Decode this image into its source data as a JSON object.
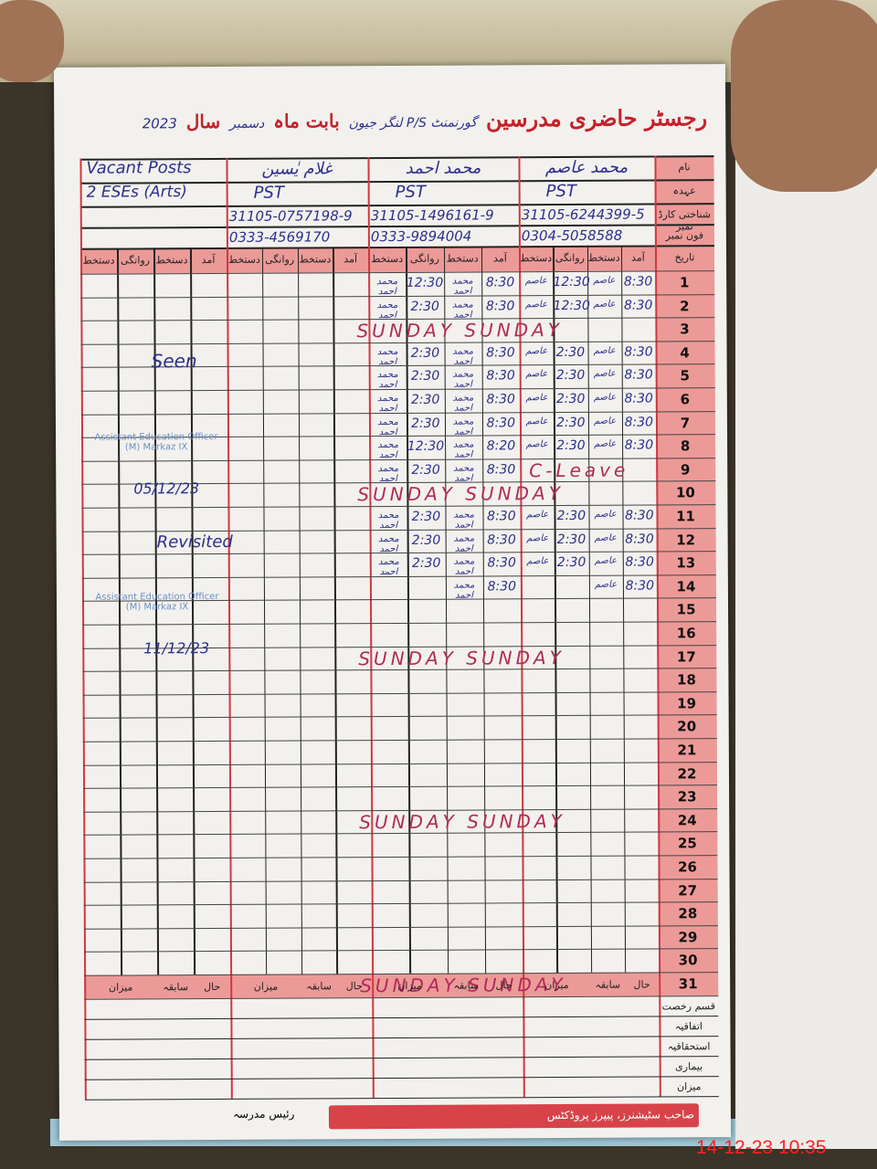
{
  "header": {
    "title": "رجسٹر حاضری مدرسین",
    "school": "گورنمنٹ P/S لنگر جیون",
    "month_label": "بابت ماہ",
    "month": "دسمبر",
    "year_label": "سال",
    "year": "2023"
  },
  "row_labels": {
    "name": "نام",
    "designation": "عہدہ",
    "cnic": "شناختی کارڈ نمبر",
    "phone": "فون نمبر",
    "date": "تاریخ"
  },
  "col_labels": [
    "آمد",
    "دستخط",
    "روانگی",
    "دستخط"
  ],
  "teachers": [
    {
      "name": "محمد عاصم",
      "designation": "PST",
      "cnic": "31105-6244399-5",
      "phone": "0304-5058588",
      "sig": "عاصم"
    },
    {
      "name": "محمد احمد",
      "designation": "PST",
      "cnic": "31105-1496161-9",
      "phone": "0333-9894004",
      "sig": "محمد احمد"
    },
    {
      "name": "غلام یٰسین",
      "designation": "PST",
      "cnic": "31105-0757198-9",
      "phone": "0333-4569170",
      "sig": ""
    }
  ],
  "vacant": {
    "line1": "Vacant Posts",
    "line2": "2 ESEs (Arts)"
  },
  "attendance": [
    {
      "day": "1",
      "t1": [
        "8:30",
        "12:30"
      ],
      "t2": [
        "8:30",
        "12:30"
      ]
    },
    {
      "day": "2",
      "t1": [
        "8:30",
        "12:30"
      ],
      "t2": [
        "8:30",
        "2:30"
      ]
    },
    {
      "day": "3",
      "sunday": "SUNDAY   SUNDAY"
    },
    {
      "day": "4",
      "t1": [
        "8:30",
        "2:30"
      ],
      "t2": [
        "8:30",
        "2:30"
      ]
    },
    {
      "day": "5",
      "t1": [
        "8:30",
        "2:30"
      ],
      "t2": [
        "8:30",
        "2:30"
      ]
    },
    {
      "day": "6",
      "t1": [
        "8:30",
        "2:30"
      ],
      "t2": [
        "8:30",
        "2:30"
      ]
    },
    {
      "day": "7",
      "t1": [
        "8:30",
        "2:30"
      ],
      "t2": [
        "8:30",
        "2:30"
      ]
    },
    {
      "day": "8",
      "t1": [
        "8:30",
        "2:30"
      ],
      "t2": [
        "8:20",
        "12:30"
      ]
    },
    {
      "day": "9",
      "t1_note": "C-Leave",
      "t2": [
        "8:30",
        "2:30"
      ]
    },
    {
      "day": "10",
      "sunday": "SUNDAY   SUNDAY"
    },
    {
      "day": "11",
      "t1": [
        "8:30",
        "2:30"
      ],
      "t2": [
        "8:30",
        "2:30"
      ]
    },
    {
      "day": "12",
      "t1": [
        "8:30",
        "2:30"
      ],
      "t2": [
        "8:30",
        "2:30"
      ]
    },
    {
      "day": "13",
      "t1": [
        "8:30",
        "2:30"
      ],
      "t2": [
        "8:30",
        "2:30"
      ]
    },
    {
      "day": "14",
      "t1": [
        "8:30",
        ""
      ],
      "t2": [
        "8:30",
        ""
      ]
    },
    {
      "day": "15"
    },
    {
      "day": "16"
    },
    {
      "day": "17",
      "sunday": "SUNDAY   SUNDAY"
    },
    {
      "day": "18"
    },
    {
      "day": "19"
    },
    {
      "day": "20"
    },
    {
      "day": "21"
    },
    {
      "day": "22"
    },
    {
      "day": "23"
    },
    {
      "day": "24",
      "sunday": "SUNDAY   SUNDAY"
    },
    {
      "day": "25"
    },
    {
      "day": "26"
    },
    {
      "day": "27"
    },
    {
      "day": "28"
    },
    {
      "day": "29"
    },
    {
      "day": "30"
    },
    {
      "day": "31",
      "sunday": "SUNDAY   SUNDAY"
    }
  ],
  "summary": {
    "cols": [
      "حال",
      "سابقہ",
      "میزان"
    ],
    "rows": [
      "قسم رخصت",
      "اتفاقیہ",
      "استحقاقیہ",
      "بیماری",
      "میزان"
    ]
  },
  "margin_notes": {
    "seen": "Seen",
    "seen_date": "05/12/23",
    "revisited": "Revisited",
    "revisited_date": "11/12/23",
    "stamp": "Assistant Education Officer (M) Markaz IX"
  },
  "footer": {
    "head": "رئیس مدرسہ",
    "printer": "صاحب سٹیشنرز، پیپرز پروڈکٹس"
  },
  "timestamp": "14-12-23  10:35",
  "colors": {
    "accent_red": "#c4222a",
    "pink": "#ec9a98",
    "ink_blue": "#2b2f8c",
    "timestamp": "#ff2020"
  }
}
